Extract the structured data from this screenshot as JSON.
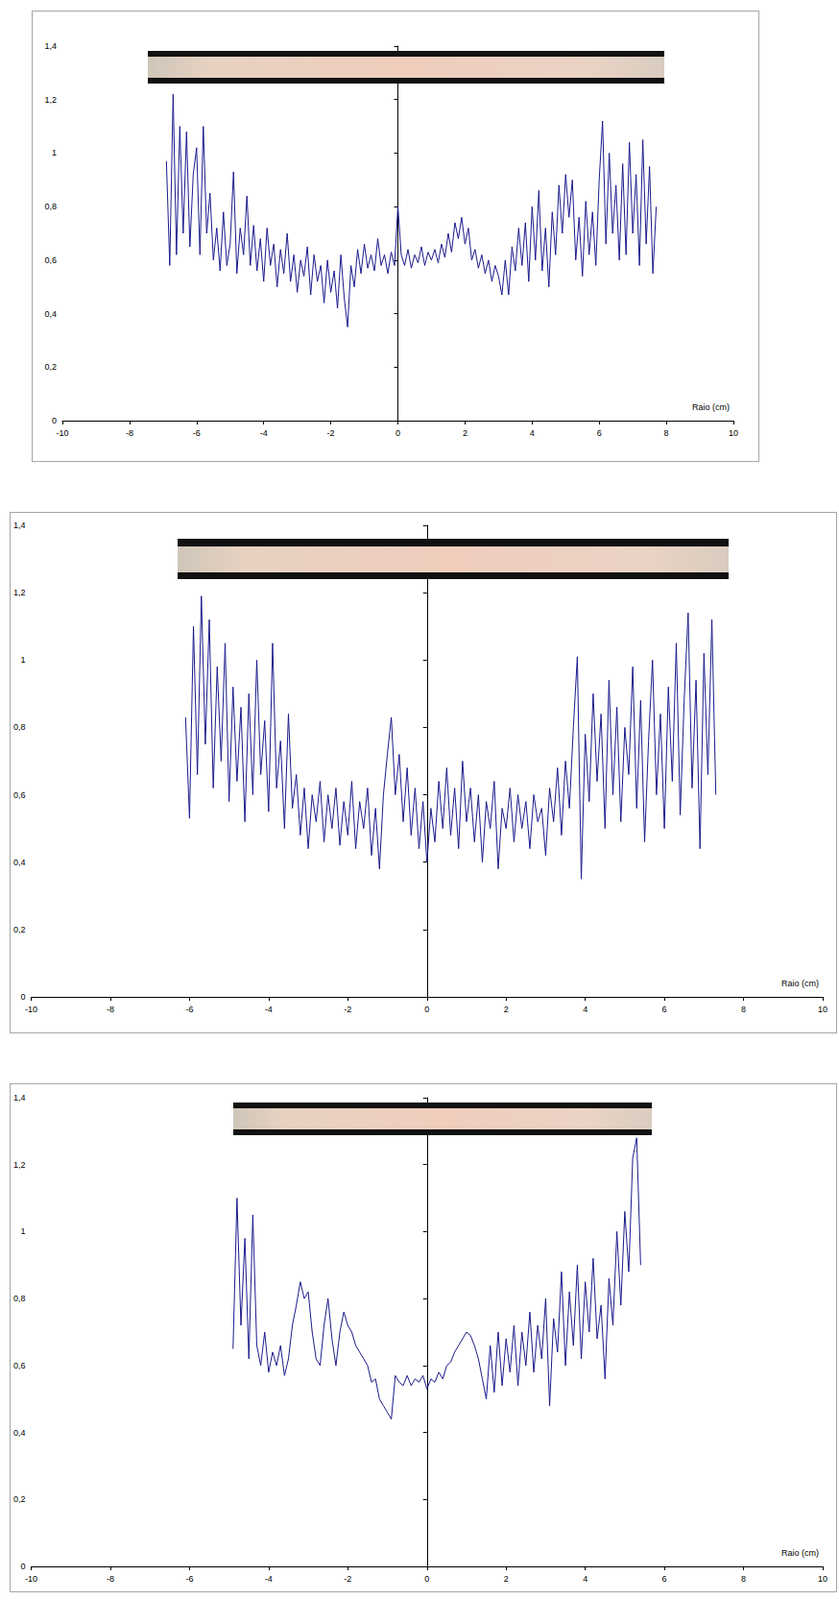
{
  "chart_data": [
    {
      "type": "line",
      "xlabel": "Raio (cm)",
      "color": "#1a1a8c",
      "grid": false,
      "xlim": [
        -10,
        10
      ],
      "xticks": [
        -10,
        -8,
        -6,
        -4,
        -2,
        0,
        2,
        4,
        6,
        8,
        10
      ],
      "ylim": [
        0,
        1.4
      ],
      "yticks": [
        0,
        {
          "value": 0.2,
          "label": "0,2"
        },
        {
          "value": 0.4,
          "label": "0,4"
        },
        {
          "value": 0.6,
          "label": "0,6"
        },
        {
          "value": 0.8,
          "label": "0,8"
        },
        1,
        {
          "value": 1.2,
          "label": "1,2"
        },
        {
          "value": 1.4,
          "label": "1,4"
        }
      ],
      "x": [
        -6.9,
        -6.8,
        -6.7,
        -6.6,
        -6.5,
        -6.4,
        -6.3,
        -6.2,
        -6.1,
        -6.0,
        -5.9,
        -5.8,
        -5.7,
        -5.6,
        -5.5,
        -5.4,
        -5.3,
        -5.2,
        -5.1,
        -5.0,
        -4.9,
        -4.8,
        -4.7,
        -4.6,
        -4.5,
        -4.4,
        -4.3,
        -4.2,
        -4.1,
        -4.0,
        -3.9,
        -3.8,
        -3.7,
        -3.6,
        -3.5,
        -3.4,
        -3.3,
        -3.2,
        -3.1,
        -3.0,
        -2.9,
        -2.8,
        -2.7,
        -2.6,
        -2.5,
        -2.4,
        -2.3,
        -2.2,
        -2.1,
        -2.0,
        -1.9,
        -1.8,
        -1.7,
        -1.6,
        -1.5,
        -1.4,
        -1.3,
        -1.2,
        -1.1,
        -1.0,
        -0.9,
        -0.8,
        -0.7,
        -0.6,
        -0.5,
        -0.4,
        -0.3,
        -0.2,
        -0.1,
        0.0,
        0.1,
        0.2,
        0.3,
        0.4,
        0.5,
        0.6,
        0.7,
        0.8,
        0.9,
        1.0,
        1.1,
        1.2,
        1.3,
        1.4,
        1.5,
        1.6,
        1.7,
        1.8,
        1.9,
        2.0,
        2.1,
        2.2,
        2.3,
        2.4,
        2.5,
        2.6,
        2.7,
        2.8,
        2.9,
        3.0,
        3.1,
        3.2,
        3.3,
        3.4,
        3.5,
        3.6,
        3.7,
        3.8,
        3.9,
        4.0,
        4.1,
        4.2,
        4.3,
        4.4,
        4.5,
        4.6,
        4.7,
        4.8,
        4.9,
        5.0,
        5.1,
        5.2,
        5.3,
        5.4,
        5.5,
        5.6,
        5.7,
        5.8,
        5.9,
        6.0,
        6.1,
        6.2,
        6.3,
        6.4,
        6.5,
        6.6,
        6.7,
        6.8,
        6.9,
        7.0,
        7.1,
        7.2,
        7.3,
        7.4,
        7.5,
        7.6,
        7.7
      ],
      "values": [
        0.97,
        0.58,
        1.22,
        0.62,
        1.1,
        0.7,
        1.08,
        0.65,
        0.92,
        1.02,
        0.62,
        1.1,
        0.7,
        0.85,
        0.6,
        0.72,
        0.56,
        0.78,
        0.58,
        0.66,
        0.93,
        0.55,
        0.72,
        0.62,
        0.84,
        0.58,
        0.73,
        0.56,
        0.68,
        0.52,
        0.72,
        0.58,
        0.66,
        0.5,
        0.64,
        0.55,
        0.7,
        0.52,
        0.62,
        0.48,
        0.6,
        0.54,
        0.65,
        0.47,
        0.62,
        0.52,
        0.58,
        0.44,
        0.6,
        0.48,
        0.56,
        0.42,
        0.62,
        0.46,
        0.35,
        0.58,
        0.5,
        0.64,
        0.55,
        0.66,
        0.57,
        0.62,
        0.56,
        0.68,
        0.58,
        0.62,
        0.55,
        0.63,
        0.58,
        0.8,
        0.62,
        0.58,
        0.64,
        0.57,
        0.62,
        0.59,
        0.65,
        0.58,
        0.63,
        0.6,
        0.64,
        0.59,
        0.66,
        0.61,
        0.7,
        0.63,
        0.74,
        0.68,
        0.76,
        0.66,
        0.72,
        0.6,
        0.64,
        0.57,
        0.62,
        0.55,
        0.6,
        0.52,
        0.58,
        0.54,
        0.47,
        0.6,
        0.47,
        0.65,
        0.56,
        0.72,
        0.58,
        0.74,
        0.52,
        0.8,
        0.6,
        0.86,
        0.56,
        0.72,
        0.5,
        0.78,
        0.62,
        0.88,
        0.7,
        0.92,
        0.76,
        0.9,
        0.6,
        0.76,
        0.54,
        0.82,
        0.62,
        0.78,
        0.58,
        0.9,
        1.12,
        0.66,
        1.0,
        0.7,
        0.88,
        0.6,
        0.96,
        0.62,
        1.04,
        0.7,
        0.92,
        0.58,
        1.05,
        0.66,
        0.95,
        0.55,
        0.8
      ]
    },
    {
      "type": "line",
      "xlabel": "Raio (cm)",
      "color": "#1a1a8c",
      "grid": false,
      "xlim": [
        -10,
        10
      ],
      "xticks": [
        -10,
        -8,
        -6,
        -4,
        -2,
        0,
        2,
        4,
        6,
        8,
        10
      ],
      "ylim": [
        0,
        1.4
      ],
      "yticks": [
        0,
        {
          "value": 0.2,
          "label": "0,2"
        },
        {
          "value": 0.4,
          "label": "0,4"
        },
        {
          "value": 0.6,
          "label": "0,6"
        },
        {
          "value": 0.8,
          "label": "0,8"
        },
        1,
        {
          "value": 1.2,
          "label": "1,2"
        },
        {
          "value": 1.4,
          "label": "1,4"
        }
      ],
      "x": [
        -6.1,
        -6.0,
        -5.9,
        -5.8,
        -5.7,
        -5.6,
        -5.5,
        -5.4,
        -5.3,
        -5.2,
        -5.1,
        -5.0,
        -4.9,
        -4.8,
        -4.7,
        -4.6,
        -4.5,
        -4.4,
        -4.3,
        -4.2,
        -4.1,
        -4.0,
        -3.9,
        -3.8,
        -3.7,
        -3.6,
        -3.5,
        -3.4,
        -3.3,
        -3.2,
        -3.1,
        -3.0,
        -2.9,
        -2.8,
        -2.7,
        -2.6,
        -2.5,
        -2.4,
        -2.3,
        -2.2,
        -2.1,
        -2.0,
        -1.9,
        -1.8,
        -1.7,
        -1.6,
        -1.5,
        -1.4,
        -1.3,
        -1.2,
        -1.1,
        -1.0,
        -0.9,
        -0.8,
        -0.7,
        -0.6,
        -0.5,
        -0.4,
        -0.3,
        -0.2,
        -0.1,
        0.0,
        0.1,
        0.2,
        0.3,
        0.4,
        0.5,
        0.6,
        0.7,
        0.8,
        0.9,
        1.0,
        1.1,
        1.2,
        1.3,
        1.4,
        1.5,
        1.6,
        1.7,
        1.8,
        1.9,
        2.0,
        2.1,
        2.2,
        2.3,
        2.4,
        2.5,
        2.6,
        2.7,
        2.8,
        2.9,
        3.0,
        3.1,
        3.2,
        3.3,
        3.4,
        3.5,
        3.6,
        3.7,
        3.8,
        3.9,
        4.0,
        4.1,
        4.2,
        4.3,
        4.4,
        4.5,
        4.6,
        4.7,
        4.8,
        4.9,
        5.0,
        5.1,
        5.2,
        5.3,
        5.4,
        5.5,
        5.6,
        5.7,
        5.8,
        5.9,
        6.0,
        6.1,
        6.2,
        6.3,
        6.4,
        6.5,
        6.6,
        6.7,
        6.8,
        6.9,
        7.0,
        7.1,
        7.2,
        7.3
      ],
      "values": [
        0.83,
        0.53,
        1.1,
        0.66,
        1.19,
        0.75,
        1.12,
        0.62,
        0.98,
        0.7,
        1.05,
        0.58,
        0.92,
        0.64,
        0.86,
        0.52,
        0.9,
        0.6,
        1.0,
        0.66,
        0.82,
        0.55,
        1.05,
        0.62,
        0.76,
        0.5,
        0.84,
        0.56,
        0.66,
        0.48,
        0.62,
        0.44,
        0.6,
        0.52,
        0.64,
        0.46,
        0.6,
        0.5,
        0.62,
        0.45,
        0.58,
        0.48,
        0.64,
        0.44,
        0.58,
        0.5,
        0.62,
        0.42,
        0.56,
        0.38,
        0.6,
        0.72,
        0.83,
        0.6,
        0.72,
        0.52,
        0.68,
        0.48,
        0.62,
        0.44,
        0.58,
        0.4,
        0.56,
        0.46,
        0.64,
        0.5,
        0.68,
        0.48,
        0.62,
        0.44,
        0.7,
        0.52,
        0.62,
        0.46,
        0.6,
        0.4,
        0.58,
        0.5,
        0.64,
        0.38,
        0.56,
        0.5,
        0.62,
        0.46,
        0.6,
        0.5,
        0.58,
        0.44,
        0.6,
        0.52,
        0.56,
        0.42,
        0.62,
        0.52,
        0.68,
        0.48,
        0.7,
        0.56,
        0.8,
        1.01,
        0.35,
        0.78,
        0.58,
        0.9,
        0.64,
        0.84,
        0.5,
        0.94,
        0.6,
        0.86,
        0.52,
        0.8,
        0.66,
        0.98,
        0.56,
        0.88,
        0.46,
        0.76,
        1.0,
        0.6,
        0.84,
        0.5,
        0.92,
        0.64,
        1.05,
        0.54,
        0.88,
        1.14,
        0.62,
        0.94,
        0.44,
        1.02,
        0.66,
        1.12,
        0.6
      ]
    },
    {
      "type": "line",
      "xlabel": "Raio (cm)",
      "color": "#1a1a8c",
      "grid": false,
      "xlim": [
        -10,
        10
      ],
      "xticks": [
        -10,
        -8,
        -6,
        -4,
        -2,
        0,
        2,
        4,
        6,
        8,
        10
      ],
      "ylim": [
        0,
        1.4
      ],
      "yticks": [
        0,
        {
          "value": 0.2,
          "label": "0,2"
        },
        {
          "value": 0.4,
          "label": "0,4"
        },
        {
          "value": 0.6,
          "label": "0,6"
        },
        {
          "value": 0.8,
          "label": "0,8"
        },
        1,
        {
          "value": 1.2,
          "label": "1,2"
        },
        {
          "value": 1.4,
          "label": "1,4"
        }
      ],
      "x": [
        -4.9,
        -4.8,
        -4.7,
        -4.6,
        -4.5,
        -4.4,
        -4.3,
        -4.2,
        -4.1,
        -4.0,
        -3.9,
        -3.8,
        -3.7,
        -3.6,
        -3.5,
        -3.4,
        -3.3,
        -3.2,
        -3.1,
        -3.0,
        -2.9,
        -2.8,
        -2.7,
        -2.6,
        -2.5,
        -2.4,
        -2.3,
        -2.2,
        -2.1,
        -2.0,
        -1.9,
        -1.8,
        -1.7,
        -1.6,
        -1.5,
        -1.4,
        -1.3,
        -1.2,
        -1.1,
        -1.0,
        -0.9,
        -0.8,
        -0.7,
        -0.6,
        -0.5,
        -0.4,
        -0.3,
        -0.2,
        -0.1,
        0.0,
        0.1,
        0.2,
        0.3,
        0.4,
        0.5,
        0.6,
        0.7,
        0.8,
        0.9,
        1.0,
        1.1,
        1.2,
        1.3,
        1.4,
        1.5,
        1.6,
        1.7,
        1.8,
        1.9,
        2.0,
        2.1,
        2.2,
        2.3,
        2.4,
        2.5,
        2.6,
        2.7,
        2.8,
        2.9,
        3.0,
        3.1,
        3.2,
        3.3,
        3.4,
        3.5,
        3.6,
        3.7,
        3.8,
        3.9,
        4.0,
        4.1,
        4.2,
        4.3,
        4.4,
        4.5,
        4.6,
        4.7,
        4.8,
        4.9,
        5.0,
        5.1,
        5.2,
        5.3,
        5.4
      ],
      "values": [
        0.65,
        1.1,
        0.72,
        0.98,
        0.62,
        1.05,
        0.66,
        0.6,
        0.7,
        0.58,
        0.64,
        0.6,
        0.66,
        0.57,
        0.62,
        0.72,
        0.78,
        0.85,
        0.8,
        0.82,
        0.7,
        0.62,
        0.6,
        0.72,
        0.8,
        0.68,
        0.6,
        0.7,
        0.76,
        0.72,
        0.7,
        0.66,
        0.64,
        0.62,
        0.6,
        0.55,
        0.56,
        0.5,
        0.48,
        0.46,
        0.44,
        0.57,
        0.55,
        0.54,
        0.57,
        0.54,
        0.56,
        0.55,
        0.57,
        0.53,
        0.56,
        0.55,
        0.58,
        0.56,
        0.6,
        0.61,
        0.64,
        0.66,
        0.68,
        0.7,
        0.69,
        0.66,
        0.62,
        0.56,
        0.5,
        0.66,
        0.52,
        0.7,
        0.54,
        0.68,
        0.58,
        0.72,
        0.54,
        0.7,
        0.6,
        0.76,
        0.58,
        0.72,
        0.62,
        0.8,
        0.48,
        0.74,
        0.64,
        0.88,
        0.6,
        0.82,
        0.66,
        0.9,
        0.62,
        0.85,
        0.7,
        0.92,
        0.68,
        0.78,
        0.56,
        0.86,
        0.72,
        1.0,
        0.78,
        1.06,
        0.88,
        1.22,
        1.28,
        0.9
      ]
    }
  ]
}
